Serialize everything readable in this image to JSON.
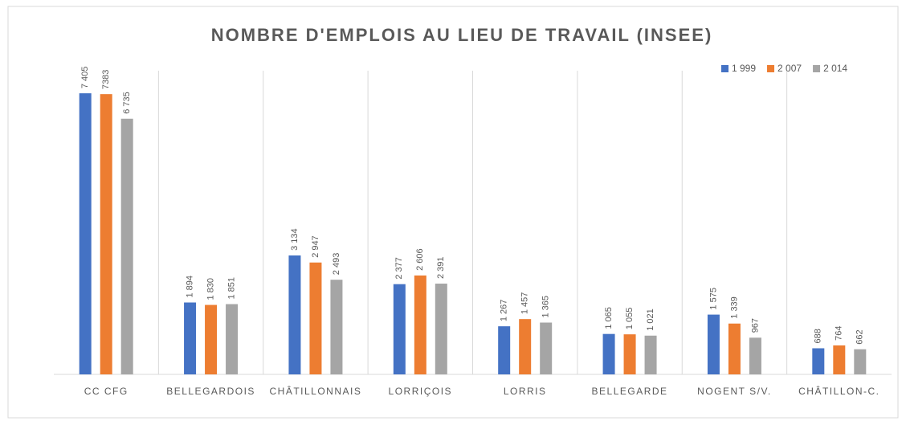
{
  "chart_data": {
    "type": "bar",
    "title": "NOMBRE D'EMPLOIS AU LIEU DE TRAVAIL (INSEE)",
    "categories": [
      "CC CFG",
      "BELLEGARDOIS",
      "CHÂTILLONNAIS",
      "LORRIÇOIS",
      "LORRIS",
      "BELLEGARDE",
      "NOGENT S/V.",
      "CHÂTILLON-C."
    ],
    "series": [
      {
        "name": "1 999",
        "color": "#4472c4",
        "values": [
          7405,
          1894,
          3134,
          2377,
          1267,
          1065,
          1575,
          688
        ],
        "value_labels": [
          "7 405",
          "1 894",
          "3 134",
          "2 377",
          "1 267",
          "1 065",
          "1 575",
          "688"
        ]
      },
      {
        "name": "2 007",
        "color": "#ed7d31",
        "values": [
          7383,
          1830,
          2947,
          2606,
          1457,
          1055,
          1339,
          764
        ],
        "value_labels": [
          "7383",
          "1 830",
          "2 947",
          "2 606",
          "1 457",
          "1 055",
          "1 339",
          "764"
        ]
      },
      {
        "name": "2 014",
        "color": "#a5a5a5",
        "values": [
          6735,
          1851,
          2493,
          2391,
          1365,
          1021,
          967,
          662
        ],
        "value_labels": [
          "6 735",
          "1 851",
          "2 493",
          "2 391",
          "1 365",
          "1 021",
          "967",
          "662"
        ]
      }
    ],
    "ylim": [
      0,
      8000
    ],
    "legend": "top-right"
  }
}
